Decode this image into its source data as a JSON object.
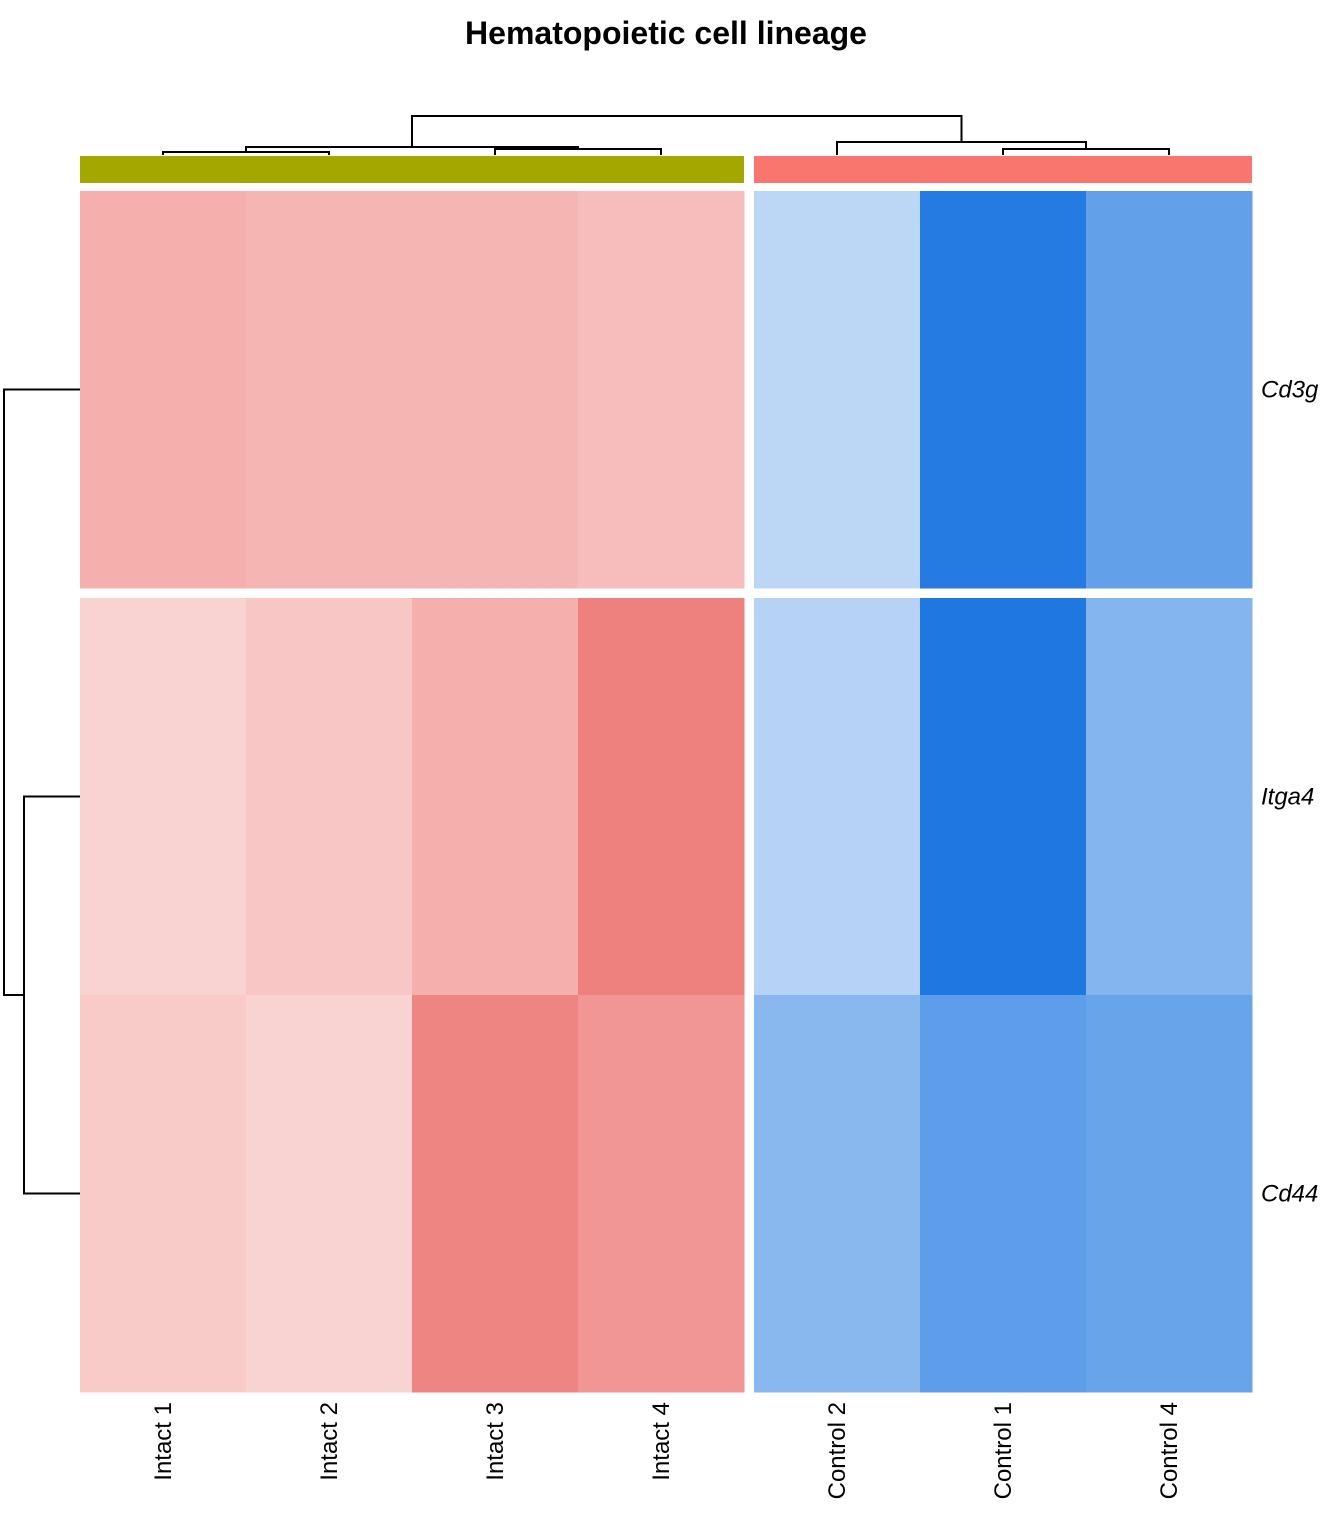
{
  "chart_data": {
    "type": "heatmap",
    "title": "Hematopoietic cell lineage",
    "rows": [
      "Cd3g",
      "Itga4",
      "Cd44"
    ],
    "column_groups": [
      {
        "color": "#a3a700",
        "columns": [
          "Intact 1",
          "Intact 2",
          "Intact 3",
          "Intact 4"
        ]
      },
      {
        "color": "#f8766d",
        "columns": [
          "Control 2",
          "Control 1",
          "Control 4"
        ]
      }
    ],
    "row_splits": [
      [
        "Cd3g"
      ],
      [
        "Itga4",
        "Cd44"
      ]
    ],
    "value_range": [
      -2,
      2
    ],
    "colors": {
      "low": "#1f78e0",
      "mid": "#ffffff",
      "high": "#e8504c"
    },
    "values": [
      [
        0.9,
        0.85,
        0.85,
        0.75,
        -0.6,
        -1.95,
        -1.4
      ],
      [
        0.5,
        0.65,
        0.9,
        1.45,
        -0.65,
        -2.0,
        -1.1
      ],
      [
        0.6,
        0.5,
        1.4,
        1.2,
        -1.05,
        -1.45,
        -1.35
      ]
    ],
    "row_dendrogram": true,
    "column_dendrogram": true
  }
}
